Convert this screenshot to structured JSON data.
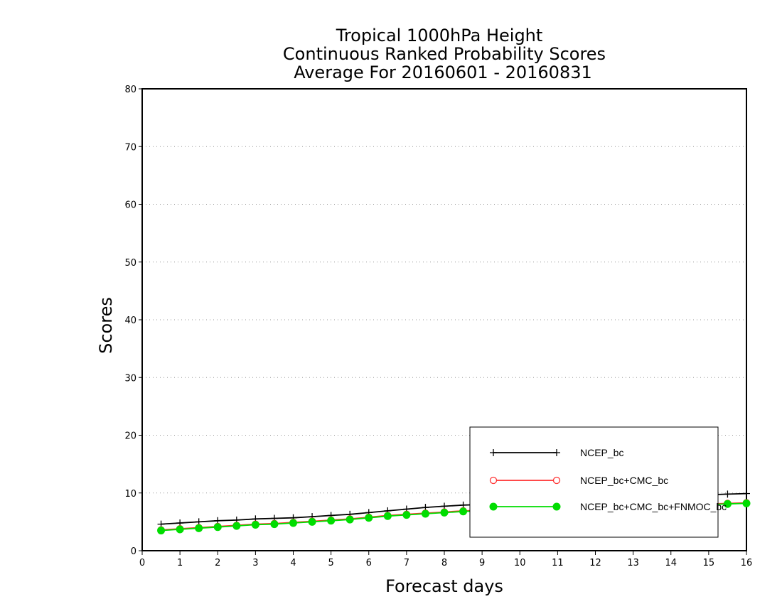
{
  "chart_data": {
    "type": "line",
    "title": [
      "Tropical 1000hPa Height",
      "Continuous Ranked Probability Scores",
      "Average For 20160601 - 20160831"
    ],
    "xlabel": "Forecast days",
    "ylabel": "Scores",
    "xlim": [
      0,
      16
    ],
    "ylim": [
      0,
      80
    ],
    "xticks": [
      0,
      1,
      2,
      3,
      4,
      5,
      6,
      7,
      8,
      9,
      10,
      11,
      12,
      13,
      14,
      15,
      16
    ],
    "yticks": [
      0,
      10,
      20,
      30,
      40,
      50,
      60,
      70,
      80
    ],
    "grid": "horizontal dotted",
    "legend_position": "bottom-right",
    "x": [
      0.5,
      1,
      1.5,
      2,
      2.5,
      3,
      3.5,
      4,
      4.5,
      5,
      5.5,
      6,
      6.5,
      7,
      7.5,
      8,
      8.5,
      9,
      9.5,
      10,
      10.5,
      11,
      11.5,
      12,
      12.5,
      13,
      13.5,
      14,
      14.5,
      15,
      15.5,
      16
    ],
    "series": [
      {
        "name": "NCEP_bc",
        "color": "#000000",
        "marker": "plus",
        "values": [
          4.6,
          4.8,
          5.0,
          5.2,
          5.3,
          5.5,
          5.6,
          5.7,
          5.9,
          6.1,
          6.3,
          6.6,
          6.9,
          7.2,
          7.5,
          7.7,
          7.9,
          8.0,
          8.2,
          8.4,
          8.5,
          8.7,
          8.8,
          9.0,
          9.1,
          9.2,
          9.3,
          9.5,
          9.6,
          9.7,
          9.8,
          9.9
        ]
      },
      {
        "name": "NCEP_bc+CMC_bc",
        "color": "#ff3030",
        "marker": "open-circle",
        "values": [
          3.6,
          3.8,
          4.0,
          4.2,
          4.4,
          4.6,
          4.7,
          4.9,
          5.1,
          5.3,
          5.5,
          5.8,
          6.1,
          6.3,
          6.5,
          6.7,
          6.9,
          7.0,
          7.1,
          7.2,
          7.3,
          7.4,
          7.5,
          7.6,
          7.7,
          7.8,
          7.8,
          7.9,
          8.0,
          8.1,
          8.2,
          8.3
        ]
      },
      {
        "name": "NCEP_bc+CMC_bc+FNMOC_bc",
        "color": "#00dd00",
        "marker": "filled-circle",
        "values": [
          3.5,
          3.7,
          3.9,
          4.1,
          4.3,
          4.5,
          4.6,
          4.8,
          5.0,
          5.2,
          5.4,
          5.7,
          6.0,
          6.2,
          6.4,
          6.6,
          6.8,
          6.9,
          7.0,
          7.1,
          7.2,
          7.3,
          7.4,
          7.5,
          7.6,
          7.7,
          7.7,
          7.8,
          7.9,
          8.0,
          8.1,
          8.2
        ]
      }
    ]
  }
}
